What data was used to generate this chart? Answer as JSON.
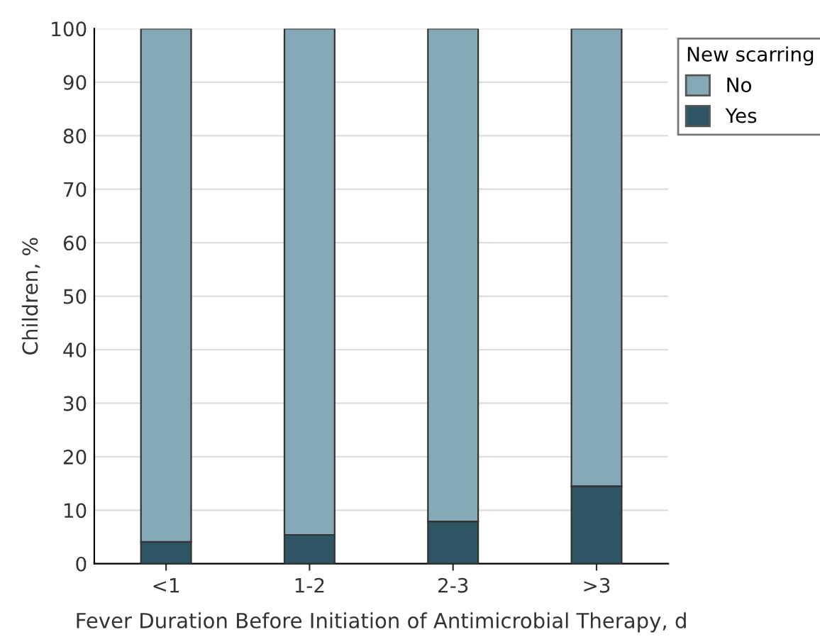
{
  "chart_data": {
    "type": "bar",
    "stacked": true,
    "xlabel": "Fever Duration Before Initiation of Antimicrobial Therapy, d",
    "ylabel": "Children, %",
    "categories": [
      "<1",
      "1-2",
      "2-3",
      ">3"
    ],
    "series": [
      {
        "name": "Yes",
        "color": "#2e5564",
        "values": [
          4.1,
          5.4,
          7.9,
          14.5
        ]
      },
      {
        "name": "No",
        "color": "#86a9b8",
        "values": [
          95.9,
          94.6,
          92.1,
          85.5
        ]
      }
    ],
    "ylim": [
      0,
      100
    ],
    "yticks": [
      0,
      10,
      20,
      30,
      40,
      50,
      60,
      70,
      80,
      90,
      100
    ],
    "grid": "y",
    "legend": "top right",
    "legend_title": "New scarring"
  }
}
